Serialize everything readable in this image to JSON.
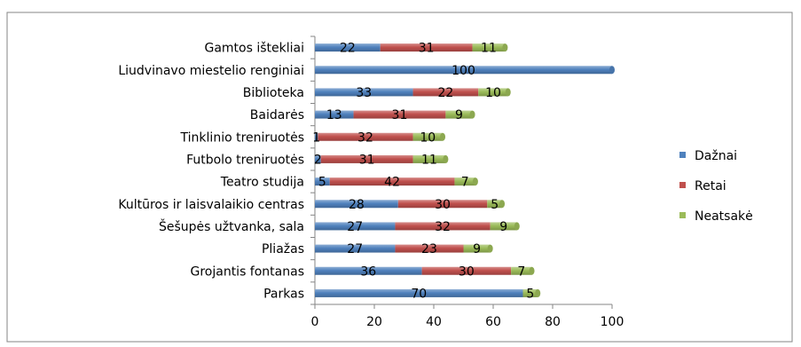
{
  "chart_data": {
    "type": "bar",
    "orientation": "horizontal",
    "stacked": true,
    "categories": [
      "Gamtos ištekliai",
      "Liudvinavo miestelio renginiai",
      "Biblioteka",
      "Baidarės",
      "Tinklinio treniruotės",
      "Futbolo treniruotės",
      "Teatro studija",
      "Kultūros ir laisvalaikio centras",
      "Šešupės užtvanka, sala",
      "Pliažas",
      "Grojantis fontanas",
      "Parkas"
    ],
    "series": [
      {
        "name": "Dažnai",
        "color": "#4F81BD",
        "values": [
          22,
          100,
          33,
          13,
          1,
          2,
          5,
          28,
          27,
          27,
          36,
          70
        ]
      },
      {
        "name": "Retai",
        "color": "#C0504D",
        "values": [
          31,
          0,
          22,
          31,
          32,
          31,
          42,
          30,
          32,
          23,
          30,
          0
        ]
      },
      {
        "name": "Neatsakė",
        "color": "#9BBB59",
        "values": [
          11,
          0,
          10,
          9,
          10,
          11,
          7,
          5,
          9,
          9,
          7,
          5
        ]
      }
    ],
    "xlim": [
      0,
      100
    ],
    "xticks": [
      0,
      20,
      40,
      60,
      80,
      100
    ],
    "legend_position": "right",
    "grid": false
  }
}
